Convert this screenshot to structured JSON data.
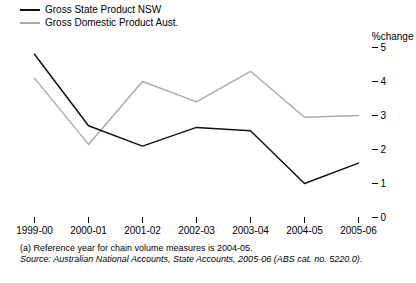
{
  "chart_data": {
    "type": "line",
    "categories": [
      "1999-00",
      "2000-01",
      "2001-02",
      "2002-03",
      "2003-04",
      "2004-05",
      "2005-06"
    ],
    "series": [
      {
        "name": "Gross State Product NSW",
        "color": "#111111",
        "values": [
          4.8,
          2.7,
          2.1,
          2.65,
          2.55,
          1.0,
          1.6
        ]
      },
      {
        "name": "Gross Domestic Product Aust.",
        "color": "#aaaaaa",
        "values": [
          4.1,
          2.15,
          4.0,
          3.4,
          4.3,
          2.95,
          3.0
        ]
      }
    ],
    "ylabel": "%change",
    "ylim": [
      0,
      5
    ],
    "yticks": [
      0,
      1,
      2,
      3,
      4,
      5
    ],
    "grid": false,
    "legend": "upper left",
    "annotations": [
      "(a) Reference year for chain volume measures is 2004-05.",
      "Source: Australian National Accounts, State Accounts, 2005-06 (ABS cat. no. 5220.0)."
    ]
  }
}
